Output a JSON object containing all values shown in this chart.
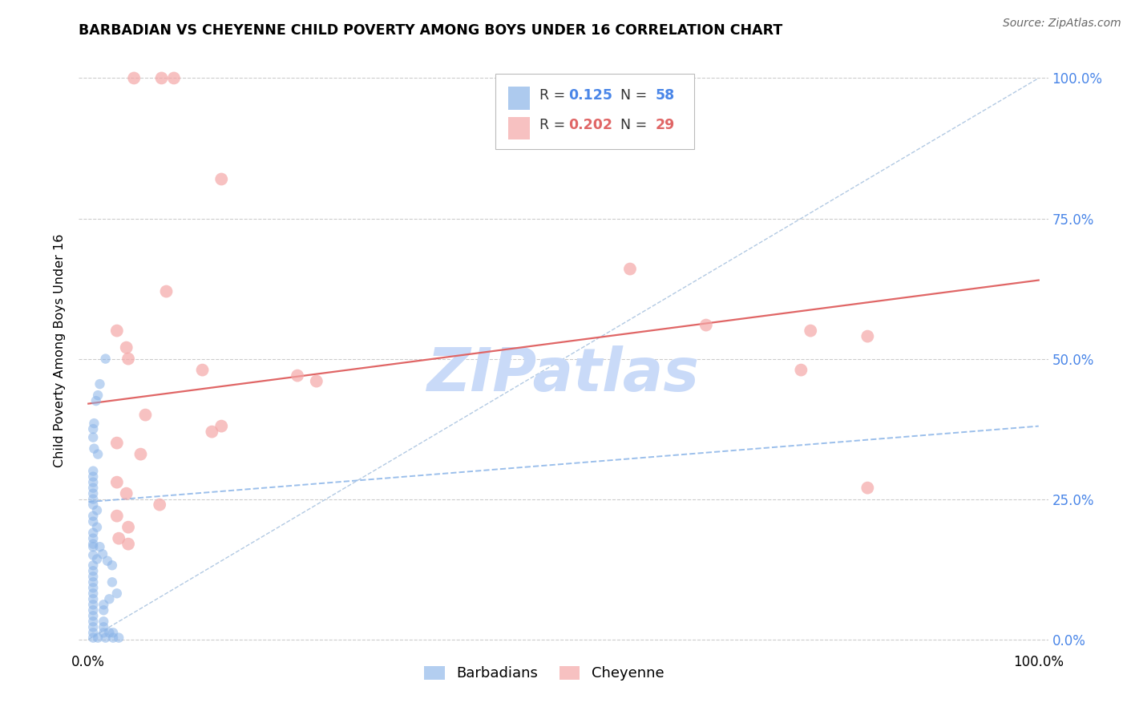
{
  "title": "BARBADIAN VS CHEYENNE CHILD POVERTY AMONG BOYS UNDER 16 CORRELATION CHART",
  "source": "Source: ZipAtlas.com",
  "ylabel": "Child Poverty Among Boys Under 16",
  "ytick_labels": [
    "0.0%",
    "25.0%",
    "50.0%",
    "75.0%",
    "100.0%"
  ],
  "ytick_values": [
    0.0,
    0.25,
    0.5,
    0.75,
    1.0
  ],
  "xlim": [
    -0.01,
    1.01
  ],
  "ylim": [
    -0.02,
    1.05
  ],
  "r_blue": 0.125,
  "n_blue": 58,
  "r_pink": 0.202,
  "n_pink": 29,
  "blue_color": "#8ab4e8",
  "pink_color": "#f4a7a7",
  "pink_line_color": "#e06666",
  "diagonal_color": "#aac4e0",
  "watermark": "ZIPatlas",
  "watermark_color": "#c9daf8",
  "blue_points": [
    [
      0.018,
      0.5
    ],
    [
      0.012,
      0.455
    ],
    [
      0.01,
      0.435
    ],
    [
      0.008,
      0.425
    ],
    [
      0.006,
      0.385
    ],
    [
      0.005,
      0.375
    ],
    [
      0.005,
      0.36
    ],
    [
      0.006,
      0.34
    ],
    [
      0.01,
      0.33
    ],
    [
      0.005,
      0.3
    ],
    [
      0.005,
      0.29
    ],
    [
      0.005,
      0.28
    ],
    [
      0.005,
      0.27
    ],
    [
      0.005,
      0.26
    ],
    [
      0.005,
      0.25
    ],
    [
      0.005,
      0.24
    ],
    [
      0.009,
      0.23
    ],
    [
      0.005,
      0.22
    ],
    [
      0.005,
      0.21
    ],
    [
      0.009,
      0.2
    ],
    [
      0.005,
      0.19
    ],
    [
      0.005,
      0.18
    ],
    [
      0.005,
      0.17
    ],
    [
      0.005,
      0.165
    ],
    [
      0.005,
      0.15
    ],
    [
      0.009,
      0.143
    ],
    [
      0.005,
      0.132
    ],
    [
      0.005,
      0.122
    ],
    [
      0.005,
      0.112
    ],
    [
      0.005,
      0.102
    ],
    [
      0.005,
      0.092
    ],
    [
      0.005,
      0.082
    ],
    [
      0.005,
      0.072
    ],
    [
      0.005,
      0.062
    ],
    [
      0.005,
      0.052
    ],
    [
      0.005,
      0.042
    ],
    [
      0.005,
      0.032
    ],
    [
      0.005,
      0.022
    ],
    [
      0.005,
      0.012
    ],
    [
      0.005,
      0.003
    ],
    [
      0.01,
      0.003
    ],
    [
      0.018,
      0.003
    ],
    [
      0.012,
      0.165
    ],
    [
      0.015,
      0.152
    ],
    [
      0.02,
      0.14
    ],
    [
      0.025,
      0.132
    ],
    [
      0.025,
      0.102
    ],
    [
      0.03,
      0.082
    ],
    [
      0.022,
      0.072
    ],
    [
      0.016,
      0.062
    ],
    [
      0.016,
      0.052
    ],
    [
      0.016,
      0.032
    ],
    [
      0.016,
      0.022
    ],
    [
      0.016,
      0.012
    ],
    [
      0.022,
      0.012
    ],
    [
      0.026,
      0.012
    ],
    [
      0.026,
      0.003
    ],
    [
      0.032,
      0.003
    ]
  ],
  "pink_points": [
    [
      0.048,
      1.0
    ],
    [
      0.077,
      1.0
    ],
    [
      0.09,
      1.0
    ],
    [
      0.14,
      0.82
    ],
    [
      0.082,
      0.62
    ],
    [
      0.03,
      0.55
    ],
    [
      0.04,
      0.52
    ],
    [
      0.042,
      0.5
    ],
    [
      0.12,
      0.48
    ],
    [
      0.22,
      0.47
    ],
    [
      0.24,
      0.46
    ],
    [
      0.57,
      0.66
    ],
    [
      0.65,
      0.56
    ],
    [
      0.76,
      0.55
    ],
    [
      0.82,
      0.54
    ],
    [
      0.75,
      0.48
    ],
    [
      0.06,
      0.4
    ],
    [
      0.13,
      0.37
    ],
    [
      0.03,
      0.35
    ],
    [
      0.055,
      0.33
    ],
    [
      0.03,
      0.28
    ],
    [
      0.04,
      0.26
    ],
    [
      0.075,
      0.24
    ],
    [
      0.14,
      0.38
    ],
    [
      0.82,
      0.27
    ],
    [
      0.03,
      0.22
    ],
    [
      0.042,
      0.2
    ],
    [
      0.032,
      0.18
    ],
    [
      0.042,
      0.17
    ]
  ],
  "blue_trend_x": [
    0.0,
    1.0
  ],
  "blue_trend_y": [
    0.245,
    0.38
  ],
  "pink_trend_x": [
    0.0,
    1.0
  ],
  "pink_trend_y": [
    0.42,
    0.64
  ]
}
